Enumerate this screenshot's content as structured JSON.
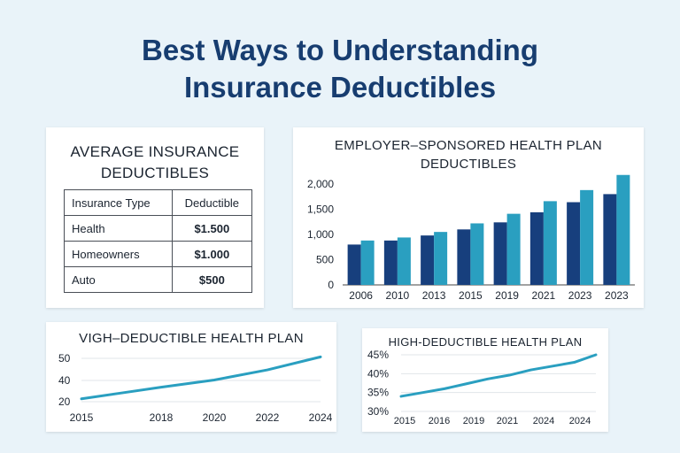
{
  "page": {
    "title_line1": "Best Ways to Understanding",
    "title_line2": "Insurance Deductibles"
  },
  "table_card": {
    "title_line1": "AVERAGE INSURANCE",
    "title_line2": "DEDUCTIBLES",
    "headers": [
      "Insurance Type",
      "Deductible"
    ],
    "rows": [
      {
        "type": "Health",
        "deductible": "$1.500"
      },
      {
        "type": "Homeowners",
        "deductible": "$1.000"
      },
      {
        "type": "Auto",
        "deductible": "$500"
      }
    ]
  },
  "chart_data": [
    {
      "type": "bar",
      "title": "EMPLOYER–SPONSORED HEALTH PLAN DEDUCTIBLES",
      "title_line1": "EMPLOYER–SPONSORED HEALTH PLAN",
      "title_line2": "DEDUCTIBLES",
      "categories": [
        "2006",
        "2010",
        "2013",
        "2015",
        "2019",
        "2021",
        "2023",
        "2023"
      ],
      "series": [
        {
          "color": "#173f7d",
          "values": [
            800,
            880,
            980,
            1100,
            1240,
            1440,
            1640,
            1800
          ]
        },
        {
          "color": "#2a9fc0",
          "values": [
            880,
            940,
            1050,
            1220,
            1410,
            1660,
            1880,
            2180
          ]
        }
      ],
      "yticks": [
        "0",
        "500",
        "1,000",
        "1,500",
        "2,000"
      ],
      "ytick_values": [
        0,
        500,
        1000,
        1500,
        2000
      ],
      "ylim": [
        0,
        2000
      ],
      "grid": false
    },
    {
      "type": "line",
      "title": "VIGH–DEDUCTIBLE HEALTH PLAN",
      "x": [
        2015,
        2016.5,
        2018,
        2020,
        2022,
        2024
      ],
      "values": [
        22,
        26,
        30,
        35,
        42,
        51
      ],
      "xticks": [
        "2015",
        "2018",
        "2020",
        "2022",
        "2024"
      ],
      "xtick_values": [
        2015,
        2018,
        2020,
        2022,
        2024
      ],
      "yticks": [
        "20",
        "40",
        "50"
      ],
      "ytick_values": [
        20,
        40,
        50
      ],
      "color": "#2a9fc0",
      "grid": true
    },
    {
      "type": "line",
      "title": "HIGH-DEDUCTIBLE HEALTH PLAN",
      "x": [
        2015,
        2016,
        2017,
        2018,
        2019,
        2020,
        2021,
        2022,
        2023,
        2024
      ],
      "values": [
        34,
        35,
        36,
        37.3,
        38.6,
        39.6,
        41,
        42,
        43,
        45
      ],
      "xticks": [
        "2015",
        "2016",
        "2019",
        "2021",
        "2024",
        "2024"
      ],
      "yticks": [
        "30%",
        "35%",
        "40%",
        "45%"
      ],
      "ytick_values": [
        30,
        35,
        40,
        45
      ],
      "color": "#2a9fc0",
      "grid": true
    }
  ]
}
